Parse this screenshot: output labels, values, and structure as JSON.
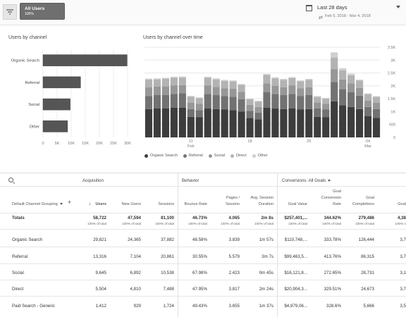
{
  "segment": {
    "name": "All Users",
    "percent": "100%"
  },
  "date_range": {
    "label": "Last 28 days",
    "compare": "Feb 5, 2018 - Mar 4, 2018"
  },
  "users_by_channel": {
    "title": "Users by channel",
    "chart_data": {
      "type": "bar",
      "orientation": "horizontal",
      "categories": [
        "Organic Search",
        "Referral",
        "Social",
        "Other"
      ],
      "values": [
        29821,
        13316,
        9645,
        8700
      ],
      "xlim": [
        0,
        30000
      ],
      "xticks": [
        "0",
        "5K",
        "10K",
        "15K",
        "20K",
        "25K",
        "30K"
      ]
    }
  },
  "users_over_time": {
    "title": "Users by channel over time",
    "chart_data": {
      "type": "bar",
      "stacked": true,
      "ylim": [
        0,
        3500
      ],
      "yticks": [
        "0",
        "500",
        "1K",
        "1.5K",
        "2K",
        "2.5K",
        "3K",
        "3.5K"
      ],
      "xtick_labels": [
        {
          "index": 5,
          "label": "11",
          "sub": "Feb"
        },
        {
          "index": 12,
          "label": "18",
          "sub": ""
        },
        {
          "index": 19,
          "label": "25",
          "sub": ""
        },
        {
          "index": 26,
          "label": "04",
          "sub": "Mar"
        }
      ],
      "series": [
        {
          "name": "Organic Search",
          "color": "#3d3d3d",
          "values": [
            1100,
            1130,
            1130,
            1150,
            1150,
            800,
            780,
            1120,
            1100,
            1080,
            1060,
            1000,
            750,
            700,
            1150,
            1120,
            1100,
            1130,
            1090,
            1100,
            800,
            780,
            1400,
            1250,
            1180,
            1100,
            820,
            760
          ]
        },
        {
          "name": "Referral",
          "color": "#727272",
          "values": [
            500,
            520,
            520,
            540,
            560,
            300,
            280,
            560,
            540,
            520,
            520,
            480,
            280,
            260,
            600,
            560,
            540,
            560,
            520,
            540,
            330,
            300,
            750,
            620,
            580,
            520,
            360,
            340
          ]
        },
        {
          "name": "Social",
          "color": "#979797",
          "values": [
            340,
            320,
            330,
            320,
            320,
            250,
            240,
            330,
            320,
            310,
            310,
            290,
            230,
            220,
            350,
            320,
            310,
            320,
            300,
            310,
            230,
            220,
            500,
            380,
            340,
            300,
            250,
            240
          ]
        },
        {
          "name": "Direct",
          "color": "#b3b3b3",
          "values": [
            300,
            280,
            290,
            300,
            290,
            230,
            220,
            300,
            290,
            280,
            280,
            270,
            220,
            210,
            320,
            290,
            280,
            290,
            270,
            280,
            210,
            200,
            450,
            350,
            310,
            280,
            240,
            230
          ]
        },
        {
          "name": "Other",
          "color": "#cfcfcf",
          "values": [
            40,
            40,
            40,
            40,
            40,
            30,
            30,
            40,
            40,
            40,
            40,
            30,
            30,
            30,
            40,
            40,
            40,
            40,
            30,
            40,
            30,
            30,
            200,
            80,
            60,
            40,
            40,
            30
          ]
        }
      ]
    }
  },
  "table": {
    "groups": {
      "acquisition": "Acquisition",
      "behavior": "Behavior",
      "conversions": "Conversions: All Goals"
    },
    "dimension_label": "Default Channel Grouping",
    "columns": [
      "Users",
      "New Users",
      "Sessions",
      "Bounce Rate",
      "Pages / Session",
      "Avg. Session Duration",
      "Goal Value",
      "Goal Conversion Rate",
      "Goal Completions",
      "Goal"
    ],
    "totals": {
      "label": "Totals",
      "values": [
        "58,722",
        "47,594",
        "81,100",
        "46.73%",
        "4.065",
        "2m 8s",
        "$257,401,...",
        "344.62%",
        "279,486",
        "4,38"
      ],
      "subs": [
        "100% of total",
        "100% of total",
        "100% of total",
        "100% of total",
        "100% of total",
        "100% of total",
        "100% of total",
        "100% of total",
        "100% of total",
        "100% o"
      ]
    },
    "rows": [
      {
        "channel": "Organic Search",
        "values": [
          "29,821",
          "24,365",
          "37,882",
          "48.58%",
          "3.839",
          "1m 57s",
          "$110,748,...",
          "333.78%",
          "126,444",
          "3,7"
        ]
      },
      {
        "channel": "Referral",
        "values": [
          "13,316",
          "7,104",
          "20,861",
          "30.55%",
          "5.579",
          "3m 7s",
          "$99,463,5...",
          "413.76%",
          "86,315",
          "3,7"
        ]
      },
      {
        "channel": "Social",
        "values": [
          "9,645",
          "6,892",
          "10,538",
          "67.98%",
          "2.423",
          "0m 45s",
          "$16,121,8...",
          "272.65%",
          "28,731",
          "3,1"
        ]
      },
      {
        "channel": "Direct",
        "values": [
          "5,504",
          "4,810",
          "7,488",
          "47.95%",
          "3.817",
          "2m 24s",
          "$20,904,3...",
          "329.51%",
          "24,673",
          "3,7"
        ]
      },
      {
        "channel": "Paid Search - Generic",
        "values": [
          "1,412",
          "929",
          "1,724",
          "49.43%",
          "3.655",
          "1m 37s",
          "$4,979,06...",
          "328.6%",
          "5,666",
          "3,5"
        ]
      }
    ]
  },
  "colors": {
    "chip": "#6f6f6f",
    "bar": "#555555",
    "grid": "#e6e6e6"
  }
}
